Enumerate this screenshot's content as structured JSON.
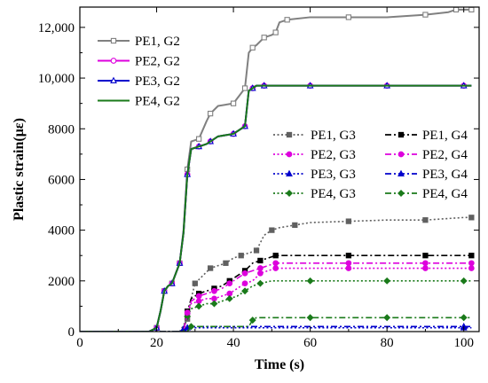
{
  "chart_data": {
    "type": "line",
    "title": "",
    "xlabel": "Time (s)",
    "ylabel": "Plastic strain(με)",
    "xlim": [
      0,
      104
    ],
    "ylim": [
      0,
      12800
    ],
    "xticks": [
      0,
      20,
      40,
      60,
      80,
      100
    ],
    "xtick_labels": [
      "0",
      "20",
      "40",
      "60",
      "80",
      "100"
    ],
    "yticks": [
      0,
      2000,
      4000,
      6000,
      8000,
      10000,
      12000
    ],
    "ytick_labels": [
      "0",
      "2000",
      "4000",
      "6000",
      "8000",
      "10,000",
      "12,000"
    ],
    "grid": false,
    "legend": {
      "G2": "top-left",
      "G3": "right-middle, left column",
      "G4": "right-middle, right column"
    },
    "series": [
      {
        "name": "PE1, G2",
        "color": "#808080",
        "style": "solid",
        "marker": "square-open",
        "x": [
          0,
          18,
          20,
          21,
          22,
          23,
          24,
          25,
          26,
          27,
          28,
          29,
          31,
          33,
          34,
          36,
          40,
          42,
          43,
          44,
          45,
          46,
          48,
          50,
          51,
          52,
          54,
          60,
          70,
          80,
          90,
          96,
          98,
          100,
          102
        ],
        "y": [
          0,
          0,
          150,
          800,
          1600,
          1800,
          1900,
          2300,
          2700,
          4000,
          6400,
          7500,
          7600,
          8300,
          8600,
          8900,
          9000,
          9400,
          9600,
          11000,
          11200,
          11300,
          11600,
          11700,
          11800,
          12200,
          12300,
          12400,
          12400,
          12400,
          12500,
          12600,
          12700,
          12700,
          12700
        ]
      },
      {
        "name": "PE2, G2",
        "color": "#dd00dd",
        "style": "solid",
        "marker": "circle-open",
        "x": [
          0,
          18,
          20,
          21,
          22,
          23,
          24,
          25,
          26,
          27,
          28,
          29,
          31,
          33,
          34,
          36,
          40,
          42,
          43,
          44,
          45,
          46,
          48,
          50,
          60,
          70,
          80,
          90,
          100,
          102
        ],
        "y": [
          0,
          0,
          150,
          800,
          1600,
          1800,
          1900,
          2300,
          2700,
          3900,
          6200,
          7200,
          7300,
          7400,
          7500,
          7700,
          7800,
          8000,
          8100,
          9500,
          9600,
          9700,
          9700,
          9700,
          9700,
          9700,
          9700,
          9700,
          9700,
          9700
        ]
      },
      {
        "name": "PE3, G2",
        "color": "#0000cc",
        "style": "solid",
        "marker": "triangle-open",
        "x": [
          0,
          18,
          20,
          21,
          22,
          23,
          24,
          25,
          26,
          27,
          28,
          29,
          31,
          33,
          34,
          36,
          40,
          42,
          43,
          44,
          45,
          46,
          48,
          50,
          60,
          70,
          80,
          90,
          100,
          102
        ],
        "y": [
          0,
          0,
          150,
          800,
          1600,
          1800,
          1900,
          2300,
          2700,
          3900,
          6200,
          7200,
          7300,
          7400,
          7500,
          7700,
          7800,
          8000,
          8100,
          9500,
          9600,
          9700,
          9700,
          9700,
          9700,
          9700,
          9700,
          9700,
          9700,
          9700
        ]
      },
      {
        "name": "PE4, G2",
        "color": "#1a7a1a",
        "style": "solid",
        "marker": "none",
        "x": [
          0,
          18,
          20,
          21,
          22,
          23,
          24,
          25,
          26,
          27,
          28,
          29,
          31,
          33,
          34,
          36,
          40,
          42,
          43,
          44,
          45,
          46,
          48,
          50,
          60,
          70,
          80,
          90,
          100,
          102
        ],
        "y": [
          0,
          0,
          150,
          800,
          1600,
          1800,
          1900,
          2300,
          2700,
          3900,
          6200,
          7200,
          7300,
          7400,
          7500,
          7700,
          7800,
          8000,
          8100,
          9500,
          9600,
          9700,
          9700,
          9700,
          9700,
          9700,
          9700,
          9700,
          9700,
          9700
        ]
      },
      {
        "name": "PE1, G3",
        "color": "#606060",
        "style": "dotted",
        "marker": "square-filled",
        "x": [
          0,
          26,
          28,
          29,
          30,
          32,
          34,
          36,
          38,
          40,
          42,
          44,
          46,
          48,
          50,
          52,
          56,
          60,
          70,
          80,
          90,
          100,
          102
        ],
        "y": [
          0,
          0,
          500,
          1300,
          1900,
          2200,
          2500,
          2600,
          2700,
          2900,
          3000,
          3100,
          3200,
          3800,
          4000,
          4100,
          4200,
          4300,
          4350,
          4400,
          4400,
          4500,
          4500
        ]
      },
      {
        "name": "PE2, G3",
        "color": "#dd00dd",
        "style": "dotted",
        "marker": "circle-filled",
        "x": [
          0,
          27,
          28,
          29,
          31,
          33,
          35,
          37,
          39,
          41,
          43,
          45,
          47,
          49,
          51,
          60,
          70,
          80,
          90,
          100,
          102
        ],
        "y": [
          0,
          0,
          700,
          1100,
          1200,
          1300,
          1300,
          1400,
          1500,
          1700,
          1900,
          2000,
          2300,
          2400,
          2500,
          2500,
          2500,
          2500,
          2500,
          2500,
          2500
        ]
      },
      {
        "name": "PE3, G3",
        "color": "#0000cc",
        "style": "dotted",
        "marker": "triangle-filled",
        "x": [
          0,
          26,
          27,
          28,
          100,
          102
        ],
        "y": [
          0,
          0,
          100,
          150,
          150,
          150
        ]
      },
      {
        "name": "PE4, G3",
        "color": "#1a7a1a",
        "style": "dotted",
        "marker": "diamond-filled",
        "x": [
          0,
          27,
          28,
          29,
          31,
          33,
          35,
          37,
          39,
          41,
          43,
          45,
          47,
          50,
          60,
          70,
          80,
          90,
          100,
          102
        ],
        "y": [
          0,
          0,
          600,
          900,
          1000,
          1100,
          1100,
          1200,
          1300,
          1400,
          1600,
          1800,
          1900,
          2000,
          2000,
          2000,
          2000,
          2000,
          2000,
          2000
        ]
      },
      {
        "name": "PE1, G4",
        "color": "#000000",
        "style": "dashdot",
        "marker": "square-filled",
        "x": [
          0,
          27,
          28,
          29,
          31,
          33,
          35,
          37,
          39,
          41,
          43,
          45,
          47,
          49,
          51,
          60,
          70,
          80,
          90,
          100,
          102
        ],
        "y": [
          0,
          0,
          800,
          1300,
          1500,
          1600,
          1700,
          1800,
          2000,
          2200,
          2400,
          2700,
          2800,
          2900,
          3000,
          3000,
          3000,
          3000,
          3000,
          3000,
          3000
        ]
      },
      {
        "name": "PE2, G4",
        "color": "#dd00dd",
        "style": "dashdot",
        "marker": "circle-filled",
        "x": [
          0,
          27,
          28,
          29,
          31,
          33,
          35,
          37,
          39,
          41,
          43,
          45,
          47,
          49,
          51,
          60,
          70,
          80,
          90,
          100,
          102
        ],
        "y": [
          0,
          0,
          750,
          1200,
          1400,
          1500,
          1600,
          1700,
          1900,
          2100,
          2300,
          2400,
          2500,
          2600,
          2700,
          2700,
          2700,
          2700,
          2700,
          2700,
          2700
        ]
      },
      {
        "name": "PE3, G4",
        "color": "#0000cc",
        "style": "dashdot",
        "marker": "triangle-filled",
        "x": [
          0,
          27,
          28,
          29,
          100,
          102
        ],
        "y": [
          0,
          0,
          150,
          200,
          200,
          200
        ]
      },
      {
        "name": "PE4, G4",
        "color": "#1a7a1a",
        "style": "dashdot",
        "marker": "diamond-filled",
        "x": [
          0,
          28,
          29,
          44,
          45,
          46,
          60,
          70,
          80,
          90,
          100,
          102
        ],
        "y": [
          0,
          0,
          200,
          200,
          450,
          550,
          550,
          550,
          550,
          550,
          550,
          550
        ]
      }
    ]
  }
}
